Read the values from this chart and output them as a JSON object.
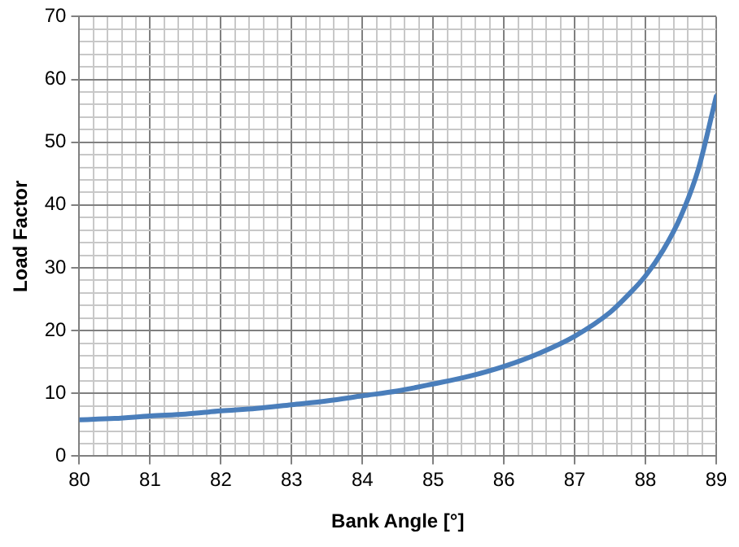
{
  "chart_data": {
    "type": "line",
    "xlabel": "Bank Angle [°]",
    "ylabel": "Load Factor",
    "x": [
      80,
      80.5,
      81,
      81.5,
      82,
      82.5,
      83,
      83.5,
      84,
      84.5,
      85,
      85.5,
      86,
      86.5,
      87,
      87.5,
      87.75,
      88,
      88.25,
      88.5,
      88.75,
      89
    ],
    "series": [
      {
        "color": "#4a7ebb",
        "values": [
          5.8,
          6.0,
          6.4,
          6.7,
          7.2,
          7.6,
          8.2,
          8.8,
          9.6,
          10.4,
          11.5,
          12.7,
          14.3,
          16.4,
          19.1,
          22.9,
          25.6,
          28.7,
          32.8,
          38.2,
          45.8,
          57.3
        ]
      }
    ],
    "xlim": [
      80,
      89
    ],
    "ylim": [
      0,
      70
    ],
    "xticks": [
      80,
      {
        "value": 80.2,
        "label": null
      },
      {
        "value": 80.4,
        "label": null
      },
      {
        "value": 80.6,
        "label": null
      },
      {
        "value": 80.8,
        "label": null
      },
      81,
      {
        "value": 81.2,
        "label": null
      },
      {
        "value": 81.4,
        "label": null
      },
      {
        "value": 81.6,
        "label": null
      },
      {
        "value": 81.8,
        "label": null
      },
      82,
      {
        "value": 82.2,
        "label": null
      },
      {
        "value": 82.4,
        "label": null
      },
      {
        "value": 82.6,
        "label": null
      },
      {
        "value": 82.8,
        "label": null
      },
      83,
      {
        "value": 83.2,
        "label": null
      },
      {
        "value": 83.4,
        "label": null
      },
      {
        "value": 83.6,
        "label": null
      },
      {
        "value": 83.8,
        "label": null
      },
      84,
      {
        "value": 84.2,
        "label": null
      },
      {
        "value": 84.4,
        "label": null
      },
      {
        "value": 84.6,
        "label": null
      },
      {
        "value": 84.8,
        "label": null
      },
      85,
      {
        "value": 85.2,
        "label": null
      },
      {
        "value": 85.4,
        "label": null
      },
      {
        "value": 85.6,
        "label": null
      },
      {
        "value": 85.8,
        "label": null
      },
      86,
      {
        "value": 86.2,
        "label": null
      },
      {
        "value": 86.4,
        "label": null
      },
      {
        "value": 86.6,
        "label": null
      },
      {
        "value": 86.8,
        "label": null
      },
      87,
      {
        "value": 87.2,
        "label": null
      },
      {
        "value": 87.4,
        "label": null
      },
      {
        "value": 87.6,
        "label": null
      },
      {
        "value": 87.8,
        "label": null
      },
      88,
      {
        "value": 88.2,
        "label": null
      },
      {
        "value": 88.4,
        "label": null
      },
      {
        "value": 88.6,
        "label": null
      },
      {
        "value": 88.8,
        "label": null
      },
      89
    ],
    "yticks": [
      0,
      {
        "value": 2,
        "label": null
      },
      {
        "value": 4,
        "label": null
      },
      {
        "value": 6,
        "label": null
      },
      {
        "value": 8,
        "label": null
      },
      10,
      {
        "value": 12,
        "label": null
      },
      {
        "value": 14,
        "label": null
      },
      {
        "value": 16,
        "label": null
      },
      {
        "value": 18,
        "label": null
      },
      20,
      {
        "value": 22,
        "label": null
      },
      {
        "value": 24,
        "label": null
      },
      {
        "value": 26,
        "label": null
      },
      {
        "value": 28,
        "label": null
      },
      30,
      {
        "value": 32,
        "label": null
      },
      {
        "value": 34,
        "label": null
      },
      {
        "value": 36,
        "label": null
      },
      {
        "value": 38,
        "label": null
      },
      40,
      {
        "value": 42,
        "label": null
      },
      {
        "value": 44,
        "label": null
      },
      {
        "value": 46,
        "label": null
      },
      {
        "value": 48,
        "label": null
      },
      50,
      {
        "value": 52,
        "label": null
      },
      {
        "value": 54,
        "label": null
      },
      {
        "value": 56,
        "label": null
      },
      {
        "value": 58,
        "label": null
      },
      60,
      {
        "value": 62,
        "label": null
      },
      {
        "value": 64,
        "label": null
      },
      {
        "value": 66,
        "label": null
      },
      {
        "value": 68,
        "label": null
      },
      70
    ],
    "grid": true,
    "legend": false,
    "marker": "none",
    "line_style": "solid"
  }
}
